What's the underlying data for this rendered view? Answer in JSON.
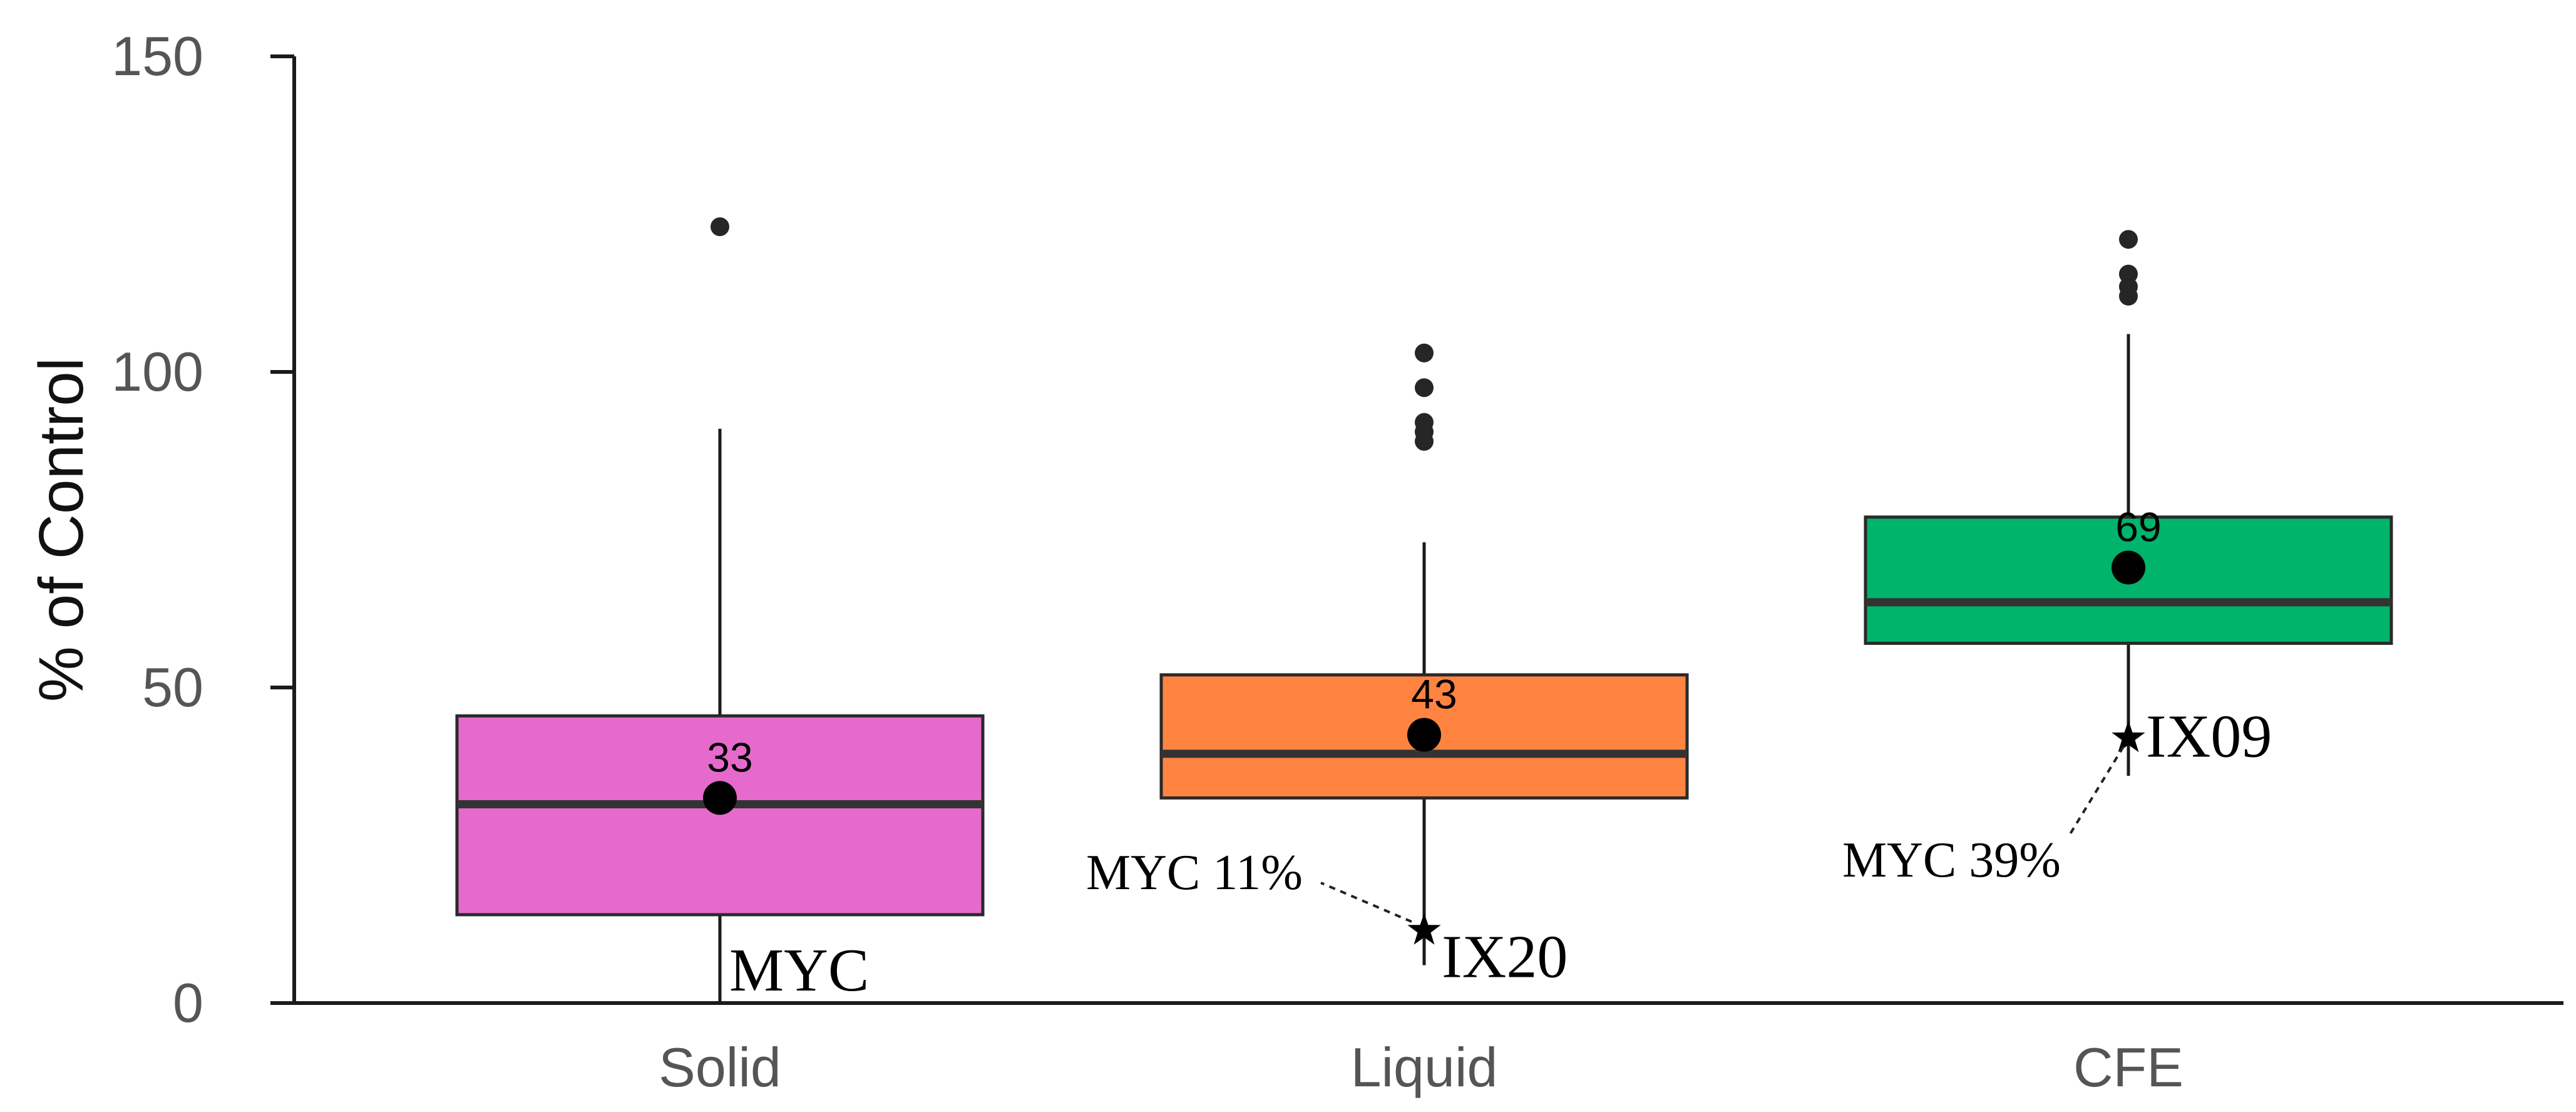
{
  "chart_data": {
    "type": "box",
    "ylabel": "% of Control",
    "xlabel": "",
    "ylim": [
      0,
      150
    ],
    "yticks": [
      "0",
      "50",
      "100",
      "150"
    ],
    "grid": false,
    "categories": [
      "Solid",
      "Liquid",
      "CFE"
    ],
    "boxes": [
      {
        "category": "Solid",
        "color": "#E66ACB",
        "q1": 14,
        "median": 31.5,
        "q3": 45.5,
        "whisker_low": 0,
        "whisker_high": 91,
        "mean": 32.5,
        "mean_label": "33",
        "outliers": [
          123
        ]
      },
      {
        "category": "Liquid",
        "color": "#FF8442",
        "q1": 32.5,
        "median": 39.5,
        "q3": 52,
        "whisker_low": 6,
        "whisker_high": 73,
        "mean": 42.5,
        "mean_label": "43",
        "outliers": [
          89,
          90.5,
          92,
          97.5,
          103
        ]
      },
      {
        "category": "CFE",
        "color": "#00B46B",
        "q1": 57,
        "median": 63.5,
        "q3": 77,
        "whisker_low": 36,
        "whisker_high": 106,
        "mean": 69,
        "mean_label": "69",
        "outliers": [
          112,
          113.5,
          115.5,
          121
        ]
      }
    ],
    "annotations": [
      {
        "category": "Solid",
        "label": "MYC",
        "value": 0
      },
      {
        "category": "Liquid",
        "label": "IX20",
        "value": 11.5,
        "callout": "MYC 11%"
      },
      {
        "category": "CFE",
        "label": "IX09",
        "value": 42,
        "callout": "MYC 39%"
      }
    ]
  }
}
